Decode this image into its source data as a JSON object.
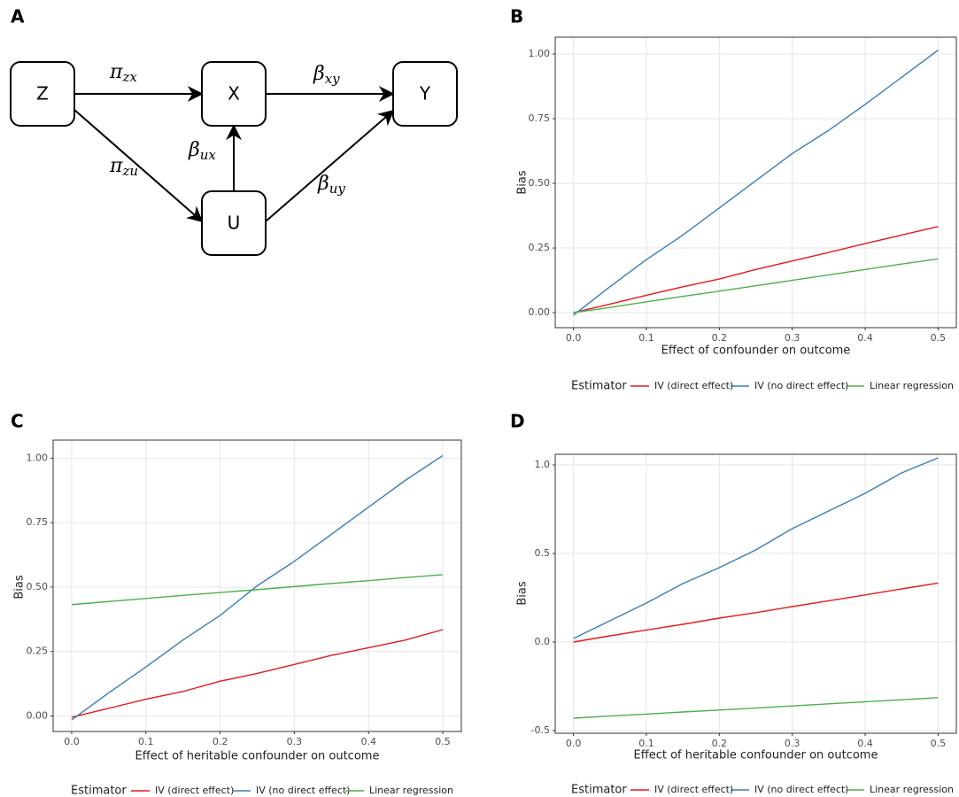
{
  "panel_labels": [
    "A",
    "B",
    "C",
    "D"
  ],
  "diagram": {
    "nodes": [
      {
        "label": "Z"
      },
      {
        "label": "X"
      },
      {
        "label": "Y"
      },
      {
        "label": "U"
      }
    ],
    "edges": [
      {
        "symbol": "π",
        "sub": "zx"
      },
      {
        "symbol": "β",
        "sub": "xy"
      },
      {
        "symbol": "β",
        "sub": "ux"
      },
      {
        "symbol": "π",
        "sub": "zu"
      },
      {
        "symbol": "β",
        "sub": "uy"
      }
    ]
  },
  "chart_data": [
    {
      "type": "line",
      "x_label": "Effect of confounder on outcome",
      "y_label": "Bias",
      "legend_title": "Estimator",
      "legend": "bottom",
      "grid": true,
      "x": [
        0,
        0.05,
        0.1,
        0.15,
        0.2,
        0.25,
        0.3,
        0.35,
        0.4,
        0.45,
        0.5
      ],
      "xlim": [
        -0.025,
        0.525
      ],
      "xticks": [
        {
          "value": 0,
          "label": "0.0"
        },
        0.1,
        0.2,
        0.3,
        0.4,
        0.5
      ],
      "ylim": [
        -0.058,
        1.065
      ],
      "yticks": [
        {
          "value": 0,
          "label": "0.00"
        },
        0.25,
        {
          "value": 0.5,
          "label": "0.50"
        },
        0.75,
        {
          "value": 1,
          "label": "1.00"
        }
      ],
      "series": [
        {
          "name": "IV (direct effect)",
          "color": "#e41a1c",
          "values": [
            0,
            0.033,
            0.067,
            0.1,
            0.13,
            0.167,
            0.2,
            0.233,
            0.267,
            0.3,
            0.333
          ]
        },
        {
          "name": "IV (no direct effect)",
          "color": "#377eb8",
          "values": [
            -0.01,
            0.1,
            0.205,
            0.3,
            0.405,
            0.51,
            0.615,
            0.705,
            0.805,
            0.91,
            1.015
          ]
        },
        {
          "name": "Linear regression",
          "color": "#4daf4a",
          "values": [
            0,
            0.02,
            0.042,
            0.063,
            0.083,
            0.104,
            0.125,
            0.146,
            0.167,
            0.188,
            0.208
          ]
        }
      ]
    },
    {
      "type": "line",
      "x_label": "Effect of heritable confounder on outcome",
      "y_label": "Bias",
      "legend_title": "Estimator",
      "legend": "bottom",
      "grid": true,
      "x": [
        0,
        0.05,
        0.1,
        0.15,
        0.2,
        0.25,
        0.3,
        0.35,
        0.4,
        0.45,
        0.5
      ],
      "xlim": [
        -0.025,
        0.525
      ],
      "xticks": [
        {
          "value": 0,
          "label": "0.0"
        },
        0.1,
        0.2,
        0.3,
        0.4,
        0.5
      ],
      "ylim": [
        -0.06,
        1.07
      ],
      "yticks": [
        {
          "value": 0,
          "label": "0.00"
        },
        0.25,
        {
          "value": 0.5,
          "label": "0.50"
        },
        0.75,
        {
          "value": 1,
          "label": "1.00"
        }
      ],
      "series": [
        {
          "name": "IV (direct effect)",
          "color": "#e41a1c",
          "values": [
            -0.005,
            0.03,
            0.065,
            0.095,
            0.135,
            0.165,
            0.2,
            0.235,
            0.265,
            0.295,
            0.335
          ]
        },
        {
          "name": "IV (no direct effect)",
          "color": "#377eb8",
          "values": [
            -0.015,
            0.09,
            0.19,
            0.295,
            0.39,
            0.505,
            0.6,
            0.705,
            0.81,
            0.915,
            1.01
          ]
        },
        {
          "name": "Linear regression",
          "color": "#4daf4a",
          "values": [
            0.432,
            0.444,
            0.456,
            0.468,
            0.479,
            0.49,
            0.502,
            0.514,
            0.525,
            0.537,
            0.548
          ]
        }
      ]
    },
    {
      "type": "line",
      "x_label": "Effect of heritable confounder on outcome",
      "y_label": "Bias",
      "legend_title": "Estimator",
      "legend": "bottom",
      "grid": true,
      "x": [
        0,
        0.05,
        0.1,
        0.15,
        0.2,
        0.25,
        0.3,
        0.35,
        0.4,
        0.45,
        0.5
      ],
      "xlim": [
        -0.025,
        0.525
      ],
      "xticks": [
        {
          "value": 0,
          "label": "0.0"
        },
        0.1,
        0.2,
        0.3,
        0.4,
        0.5
      ],
      "ylim": [
        -0.515,
        1.06
      ],
      "yticks": [
        -0.5,
        {
          "value": 0,
          "label": "0.0"
        },
        0.5,
        {
          "value": 1,
          "label": "1.0"
        }
      ],
      "series": [
        {
          "name": "IV (direct effect)",
          "color": "#e41a1c",
          "values": [
            0,
            0.035,
            0.068,
            0.1,
            0.135,
            0.166,
            0.2,
            0.233,
            0.266,
            0.3,
            0.333
          ]
        },
        {
          "name": "IV (no direct effect)",
          "color": "#377eb8",
          "values": [
            0.02,
            0.12,
            0.22,
            0.33,
            0.42,
            0.52,
            0.64,
            0.74,
            0.84,
            0.955,
            1.04
          ]
        },
        {
          "name": "Linear regression",
          "color": "#4daf4a",
          "values": [
            -0.43,
            -0.418,
            -0.407,
            -0.395,
            -0.384,
            -0.373,
            -0.361,
            -0.349,
            -0.337,
            -0.326,
            -0.314
          ]
        }
      ]
    }
  ]
}
